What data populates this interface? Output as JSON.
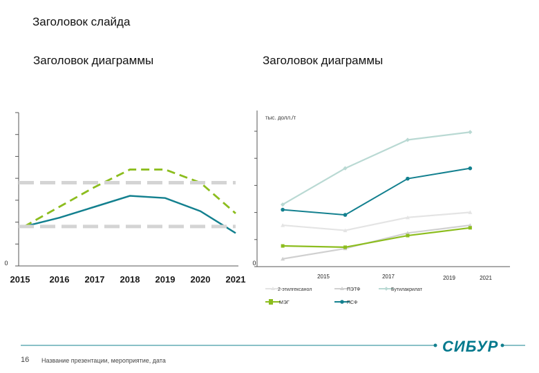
{
  "slide": {
    "title": "Заголовок слайда",
    "page_number": "16",
    "footer_text": "Название презентации, мероприятие, дата",
    "logo_text": "СИБУР"
  },
  "colors": {
    "teal": "#13808f",
    "lime": "#8cbd1e",
    "lightgray": "#d4d4d4",
    "palegreen": "#b9d9d3",
    "silver": "#d0d0d0",
    "axis": "#555555"
  },
  "chart_data": [
    {
      "type": "line",
      "title": "Заголовок диаграммы",
      "x": [
        "2015",
        "2016",
        "2017",
        "2018",
        "2019",
        "2020",
        "2021"
      ],
      "ylim": [
        0,
        7
      ],
      "y_tick_labels": [
        "0"
      ],
      "series": [
        {
          "values": [
            1.8,
            2.2,
            2.7,
            3.2,
            3.1,
            2.5,
            1.5
          ],
          "color": "#13808f",
          "style": "solid"
        },
        {
          "values": [
            1.8,
            2.7,
            3.6,
            4.4,
            4.4,
            3.8,
            2.4
          ],
          "color": "#8cbd1e",
          "style": "dashed"
        },
        {
          "values": [
            3.8,
            3.8,
            3.8,
            3.8,
            3.8,
            3.8,
            3.8
          ],
          "color": "#d4d4d4",
          "style": "dashed-thick"
        },
        {
          "values": [
            1.8,
            1.8,
            1.8,
            1.8,
            1.8,
            1.8,
            1.8
          ],
          "color": "#d4d4d4",
          "style": "dashed-thick"
        }
      ]
    },
    {
      "type": "line",
      "title": "Заголовок диаграммы",
      "ylabel": "тыс. долл./т",
      "x_tick_labels": [
        "2015",
        "2017",
        "2019",
        "2021"
      ],
      "y_tick_labels": [
        "0"
      ],
      "ylim": [
        0,
        5.5
      ],
      "x_points": [
        2014.5,
        2016.5,
        2018.5,
        2020.5
      ],
      "series": [
        {
          "name": "2-этилгексанол",
          "values": [
            1.6,
            1.4,
            1.9,
            2.1
          ],
          "color": "#e4e4e4",
          "marker": "triangle"
        },
        {
          "name": "ПЭТФ",
          "values": [
            0.3,
            0.7,
            1.3,
            1.6
          ],
          "color": "#d0d0d0",
          "marker": "triangle"
        },
        {
          "name": "Бутилакрилат",
          "values": [
            2.4,
            3.8,
            4.9,
            5.2
          ],
          "color": "#b9d9d3",
          "marker": "diamond"
        },
        {
          "name": "МЭГ",
          "values": [
            0.8,
            0.75,
            1.2,
            1.5
          ],
          "color": "#8cbd1e",
          "marker": "square"
        },
        {
          "name": "ПСФ",
          "values": [
            2.2,
            2.0,
            3.4,
            3.8
          ],
          "color": "#13808f",
          "marker": "circle"
        }
      ]
    }
  ]
}
